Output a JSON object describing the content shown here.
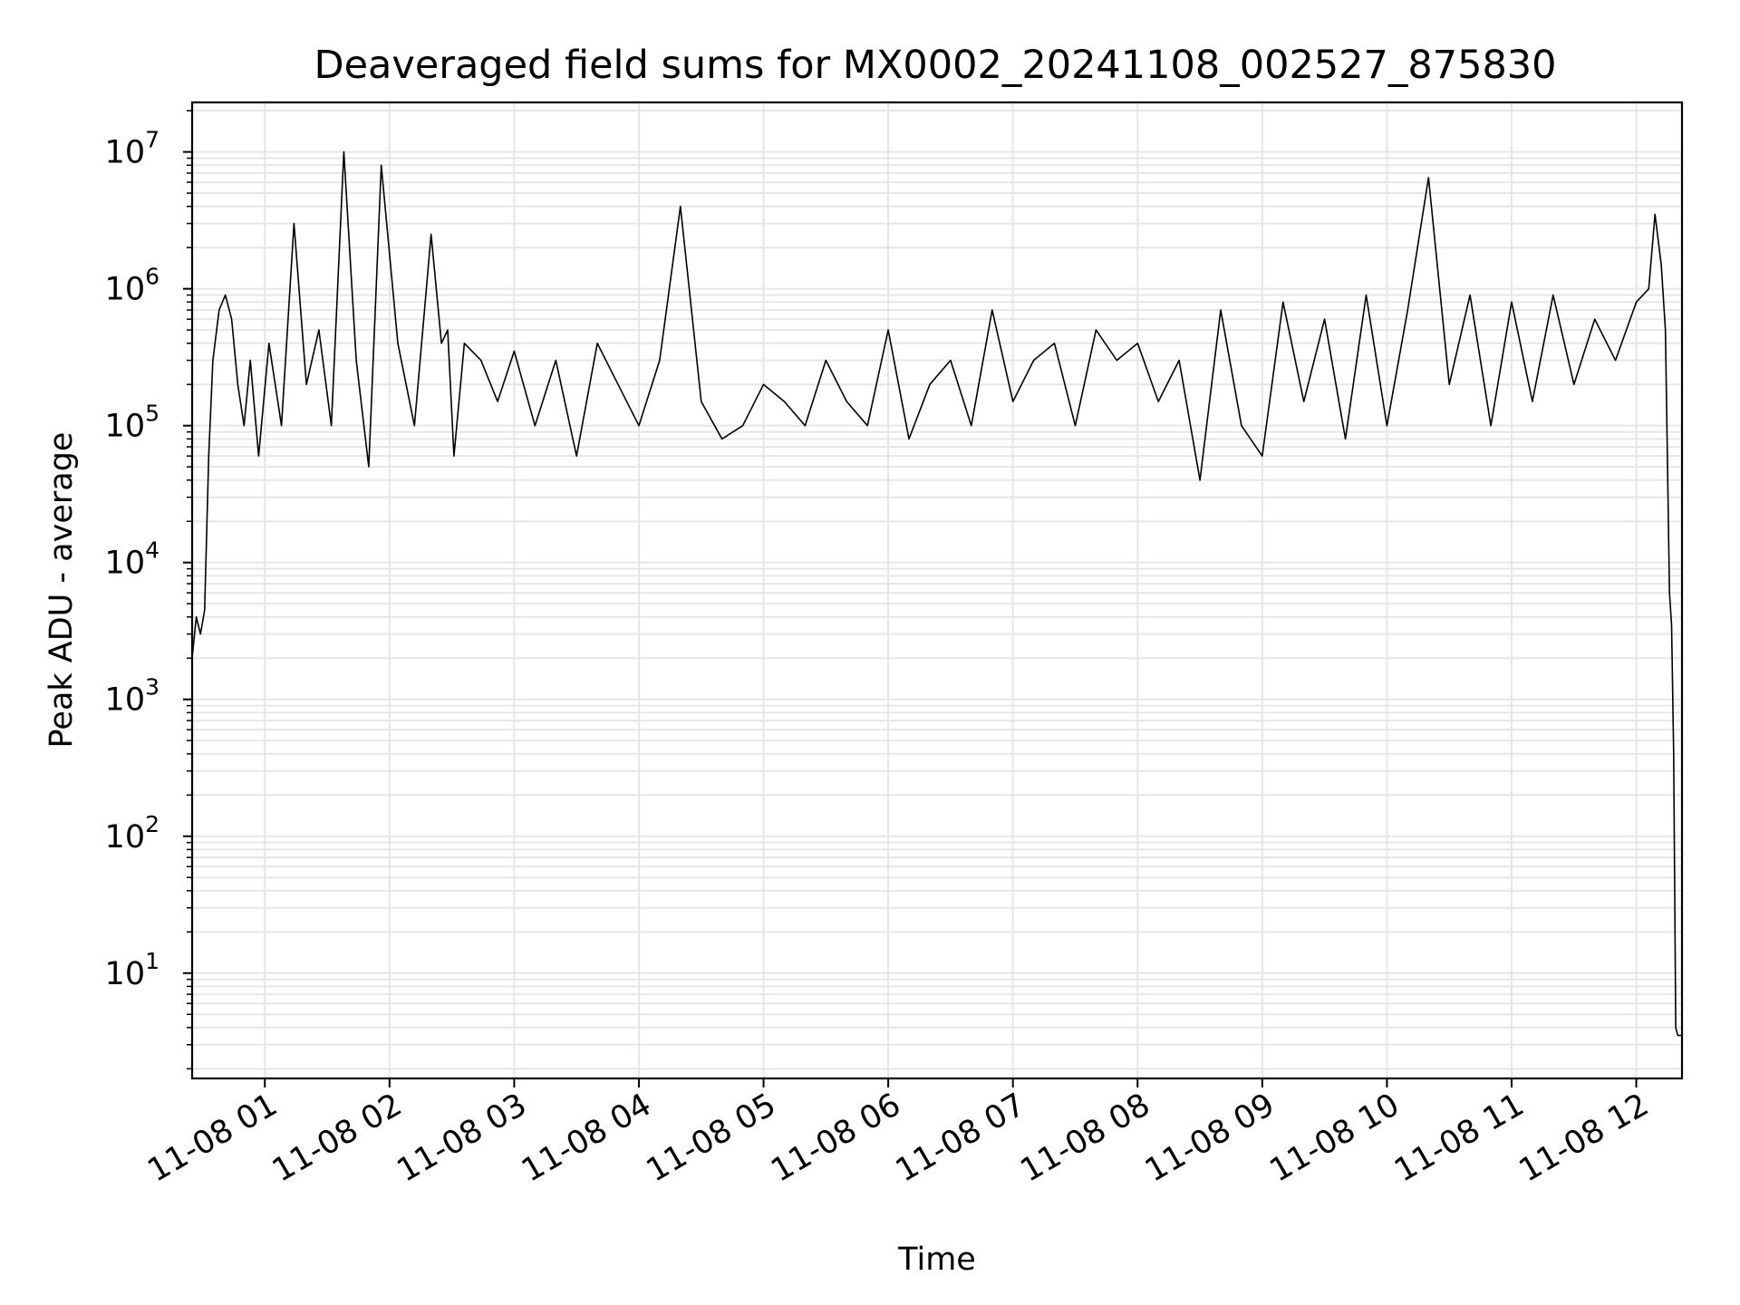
{
  "chart_data": {
    "type": "line",
    "title": "Deaveraged field sums for MX0002_20241108_002527_875830",
    "xlabel": "Time",
    "ylabel": "Peak ADU - average",
    "yscale": "log",
    "ylim": [
      1.7,
      23000000
    ],
    "xlim": [
      "2024-11-08 00:25",
      "2024-11-08 12:22"
    ],
    "grid": true,
    "x_ticks": [
      "11-08 01",
      "11-08 02",
      "11-08 03",
      "11-08 04",
      "11-08 05",
      "11-08 06",
      "11-08 07",
      "11-08 08",
      "11-08 09",
      "11-08 10",
      "11-08 11",
      "11-08 12"
    ],
    "y_ticks": [
      {
        "base": "10",
        "exp": "1"
      },
      {
        "base": "10",
        "exp": "2"
      },
      {
        "base": "10",
        "exp": "3"
      },
      {
        "base": "10",
        "exp": "4"
      },
      {
        "base": "10",
        "exp": "5"
      },
      {
        "base": "10",
        "exp": "6"
      },
      {
        "base": "10",
        "exp": "7"
      }
    ],
    "line_color": "#000000",
    "grid_color": "#e6e6e6",
    "series": [
      {
        "x": [
          "2024-11-08 00:25",
          "2024-11-08 00:27",
          "2024-11-08 00:29",
          "2024-11-08 00:31",
          "2024-11-08 00:33",
          "2024-11-08 00:35",
          "2024-11-08 00:38",
          "2024-11-08 00:41",
          "2024-11-08 00:44",
          "2024-11-08 00:47",
          "2024-11-08 00:50",
          "2024-11-08 00:53",
          "2024-11-08 00:57",
          "2024-11-08 01:02",
          "2024-11-08 01:08",
          "2024-11-08 01:14",
          "2024-11-08 01:20",
          "2024-11-08 01:26",
          "2024-11-08 01:32",
          "2024-11-08 01:38",
          "2024-11-08 01:44",
          "2024-11-08 01:50",
          "2024-11-08 01:56",
          "2024-11-08 02:04",
          "2024-11-08 02:12",
          "2024-11-08 02:20",
          "2024-11-08 02:25",
          "2024-11-08 02:28",
          "2024-11-08 02:31",
          "2024-11-08 02:36",
          "2024-11-08 02:44",
          "2024-11-08 02:52",
          "2024-11-08 03:00",
          "2024-11-08 03:10",
          "2024-11-08 03:20",
          "2024-11-08 03:30",
          "2024-11-08 03:40",
          "2024-11-08 03:50",
          "2024-11-08 04:00",
          "2024-11-08 04:10",
          "2024-11-08 04:20",
          "2024-11-08 04:30",
          "2024-11-08 04:40",
          "2024-11-08 04:50",
          "2024-11-08 05:00",
          "2024-11-08 05:10",
          "2024-11-08 05:20",
          "2024-11-08 05:30",
          "2024-11-08 05:40",
          "2024-11-08 05:50",
          "2024-11-08 06:00",
          "2024-11-08 06:10",
          "2024-11-08 06:20",
          "2024-11-08 06:30",
          "2024-11-08 06:40",
          "2024-11-08 06:50",
          "2024-11-08 07:00",
          "2024-11-08 07:10",
          "2024-11-08 07:20",
          "2024-11-08 07:30",
          "2024-11-08 07:40",
          "2024-11-08 07:50",
          "2024-11-08 08:00",
          "2024-11-08 08:10",
          "2024-11-08 08:20",
          "2024-11-08 08:30",
          "2024-11-08 08:40",
          "2024-11-08 08:50",
          "2024-11-08 09:00",
          "2024-11-08 09:10",
          "2024-11-08 09:20",
          "2024-11-08 09:30",
          "2024-11-08 09:40",
          "2024-11-08 09:50",
          "2024-11-08 10:00",
          "2024-11-08 10:10",
          "2024-11-08 10:20",
          "2024-11-08 10:30",
          "2024-11-08 10:40",
          "2024-11-08 10:50",
          "2024-11-08 11:00",
          "2024-11-08 11:10",
          "2024-11-08 11:20",
          "2024-11-08 11:30",
          "2024-11-08 11:40",
          "2024-11-08 11:50",
          "2024-11-08 12:00",
          "2024-11-08 12:06",
          "2024-11-08 12:09",
          "2024-11-08 12:12",
          "2024-11-08 12:14",
          "2024-11-08 12:16",
          "2024-11-08 12:17",
          "2024-11-08 12:18",
          "2024-11-08 12:19",
          "2024-11-08 12:20",
          "2024-11-08 12:22"
        ],
        "y": [
          2000,
          4000,
          3000,
          4500,
          60000,
          300000,
          700000,
          900000,
          600000,
          200000,
          100000,
          300000,
          60000,
          400000,
          100000,
          3000000,
          200000,
          500000,
          100000,
          10000000,
          300000,
          50000,
          8000000,
          400000,
          100000,
          2500000,
          400000,
          500000,
          60000,
          400000,
          300000,
          150000,
          350000,
          100000,
          300000,
          60000,
          400000,
          200000,
          100000,
          300000,
          4000000,
          150000,
          80000,
          100000,
          200000,
          150000,
          100000,
          300000,
          150000,
          100000,
          500000,
          80000,
          200000,
          300000,
          100000,
          700000,
          150000,
          300000,
          400000,
          100000,
          500000,
          300000,
          400000,
          150000,
          300000,
          40000,
          700000,
          100000,
          60000,
          800000,
          150000,
          600000,
          80000,
          900000,
          100000,
          700000,
          6500000,
          200000,
          900000,
          100000,
          800000,
          150000,
          900000,
          200000,
          600000,
          300000,
          800000,
          1000000,
          3500000,
          1500000,
          500000,
          6000,
          3500,
          400,
          4,
          3.5,
          3.5
        ]
      }
    ]
  }
}
